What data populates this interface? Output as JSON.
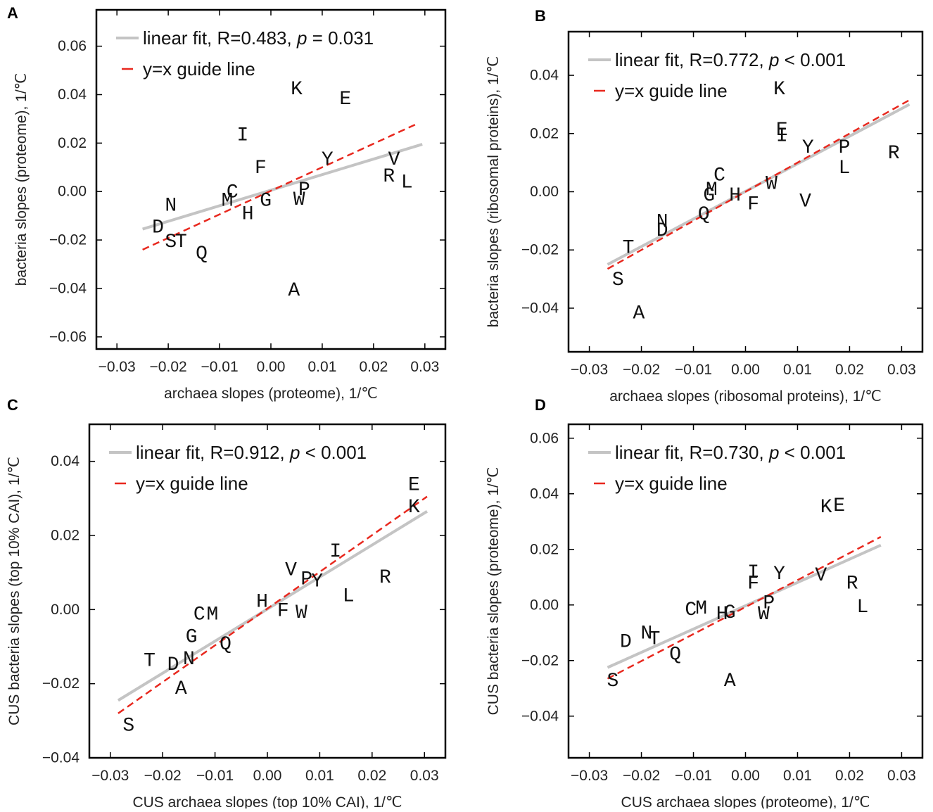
{
  "chart_data": [
    {
      "panel": "A",
      "type": "scatter",
      "xlabel": "archaea slopes (proteome), 1/℃",
      "ylabel": "bacteria slopes (proteome), 1/℃",
      "xlim": [
        -0.034,
        0.034
      ],
      "ylim": [
        -0.065,
        0.075
      ],
      "xticks": [
        -0.03,
        -0.02,
        -0.01,
        0.0,
        0.01,
        0.02,
        0.03
      ],
      "xtick_labels": [
        "−0.03",
        "−0.02",
        "−0.01",
        "0.00",
        "0.01",
        "0.02",
        "0.03"
      ],
      "yticks": [
        -0.06,
        -0.04,
        -0.02,
        0.0,
        0.02,
        0.04,
        0.06
      ],
      "ytick_labels": [
        "−0.06",
        "−0.04",
        "−0.02",
        "0.00",
        "0.02",
        "0.04",
        "0.06"
      ],
      "legend": {
        "position": "top-left",
        "fit_label": "linear fit, R=0.483, ",
        "p_symbol": "p",
        "p_value": " = 0.031",
        "guide_label": "y=x guide line"
      },
      "fit_line": {
        "x": [
          -0.025,
          0.0295
        ],
        "y": [
          -0.0155,
          0.0195
        ]
      },
      "guide_line": {
        "x": [
          -0.025,
          0.0285
        ],
        "y": [
          -0.024,
          0.028
        ]
      },
      "points": [
        {
          "label": "K",
          "x": 0.005,
          "y": 0.042
        },
        {
          "label": "E",
          "x": 0.0145,
          "y": 0.038
        },
        {
          "label": "I",
          "x": -0.0055,
          "y": 0.023
        },
        {
          "label": "Y",
          "x": 0.011,
          "y": 0.013
        },
        {
          "label": "V",
          "x": 0.024,
          "y": 0.013
        },
        {
          "label": "F",
          "x": -0.002,
          "y": 0.0095
        },
        {
          "label": "R",
          "x": 0.023,
          "y": 0.006
        },
        {
          "label": "L",
          "x": 0.0265,
          "y": 0.0035
        },
        {
          "label": "P",
          "x": 0.0065,
          "y": 0.0005
        },
        {
          "label": "C",
          "x": -0.0075,
          "y": -0.0005
        },
        {
          "label": "M",
          "x": -0.0085,
          "y": -0.004
        },
        {
          "label": "G",
          "x": -0.001,
          "y": -0.004
        },
        {
          "label": "W",
          "x": 0.0055,
          "y": -0.0035
        },
        {
          "label": "N",
          "x": -0.0195,
          "y": -0.006
        },
        {
          "label": "H",
          "x": -0.0045,
          "y": -0.0095
        },
        {
          "label": "D",
          "x": -0.022,
          "y": -0.015
        },
        {
          "label": "S",
          "x": -0.0195,
          "y": -0.021
        },
        {
          "label": "T",
          "x": -0.0175,
          "y": -0.021
        },
        {
          "label": "Q",
          "x": -0.0135,
          "y": -0.026
        },
        {
          "label": "A",
          "x": 0.0045,
          "y": -0.041
        }
      ]
    },
    {
      "panel": "B",
      "type": "scatter",
      "xlabel": "archaea slopes (ribosomal proteins), 1/℃",
      "ylabel": "bacteria slopes (ribosomal proteins), 1/℃",
      "xlim": [
        -0.034,
        0.034
      ],
      "ylim": [
        -0.055,
        0.055
      ],
      "xticks": [
        -0.03,
        -0.02,
        -0.01,
        0.0,
        0.01,
        0.02,
        0.03
      ],
      "xtick_labels": [
        "−0.03",
        "−0.02",
        "−0.01",
        "0.00",
        "0.01",
        "0.02",
        "0.03"
      ],
      "yticks": [
        -0.04,
        -0.02,
        0.0,
        0.02,
        0.04
      ],
      "ytick_labels": [
        "−0.04",
        "−0.02",
        "0.00",
        "0.02",
        "0.04"
      ],
      "legend": {
        "position": "top-left",
        "fit_label": "linear fit, R=0.772, ",
        "p_symbol": "p",
        "p_value": " < 0.001",
        "guide_label": "y=x guide line"
      },
      "fit_line": {
        "x": [
          -0.0265,
          0.0315
        ],
        "y": [
          -0.025,
          0.03
        ]
      },
      "guide_line": {
        "x": [
          -0.0265,
          0.0315
        ],
        "y": [
          -0.0265,
          0.0315
        ]
      },
      "points": [
        {
          "label": "K",
          "x": 0.0065,
          "y": 0.035
        },
        {
          "label": "E",
          "x": 0.007,
          "y": 0.021
        },
        {
          "label": "I",
          "x": 0.007,
          "y": 0.019
        },
        {
          "label": "Y",
          "x": 0.012,
          "y": 0.015
        },
        {
          "label": "P",
          "x": 0.019,
          "y": 0.015
        },
        {
          "label": "R",
          "x": 0.0285,
          "y": 0.013
        },
        {
          "label": "L",
          "x": 0.019,
          "y": 0.008
        },
        {
          "label": "C",
          "x": -0.005,
          "y": 0.0055
        },
        {
          "label": "M",
          "x": -0.0065,
          "y": 0.0005
        },
        {
          "label": "W",
          "x": 0.005,
          "y": 0.0025
        },
        {
          "label": "G",
          "x": -0.007,
          "y": -0.0015
        },
        {
          "label": "H",
          "x": -0.002,
          "y": -0.0015
        },
        {
          "label": "V",
          "x": 0.0115,
          "y": -0.0035
        },
        {
          "label": "F",
          "x": 0.0015,
          "y": -0.0045
        },
        {
          "label": "Q",
          "x": -0.008,
          "y": -0.008
        },
        {
          "label": "N",
          "x": -0.016,
          "y": -0.0105
        },
        {
          "label": "D",
          "x": -0.016,
          "y": -0.0135
        },
        {
          "label": "T",
          "x": -0.0225,
          "y": -0.0195
        },
        {
          "label": "S",
          "x": -0.0245,
          "y": -0.0305
        },
        {
          "label": "A",
          "x": -0.0205,
          "y": -0.042
        }
      ]
    },
    {
      "panel": "C",
      "type": "scatter",
      "xlabel": "CUS archaea slopes (top 10% CAI), 1/℃",
      "ylabel": "CUS bacteria slopes (top 10% CAI), 1/℃",
      "xlim": [
        -0.034,
        0.034
      ],
      "ylim": [
        -0.04,
        0.05
      ],
      "xticks": [
        -0.03,
        -0.02,
        -0.01,
        0.0,
        0.01,
        0.02,
        0.03
      ],
      "xtick_labels": [
        "−0.03",
        "−0.02",
        "−0.01",
        "0.00",
        "0.01",
        "0.02",
        "0.03"
      ],
      "yticks": [
        -0.04,
        -0.02,
        0.0,
        0.02,
        0.04
      ],
      "ytick_labels": [
        "−0.04",
        "−0.02",
        "0.00",
        "0.02",
        "0.04"
      ],
      "legend": {
        "position": "top-left",
        "fit_label": "linear fit, R=0.912, ",
        "p_symbol": "p",
        "p_value": " < 0.001",
        "guide_label": "y=x guide line"
      },
      "fit_line": {
        "x": [
          -0.0285,
          0.0305
        ],
        "y": [
          -0.0245,
          0.0265
        ]
      },
      "guide_line": {
        "x": [
          -0.0285,
          0.0305
        ],
        "y": [
          -0.028,
          0.0305
        ]
      },
      "points": [
        {
          "label": "E",
          "x": 0.028,
          "y": 0.0335
        },
        {
          "label": "K",
          "x": 0.028,
          "y": 0.0275
        },
        {
          "label": "I",
          "x": 0.013,
          "y": 0.0155
        },
        {
          "label": "V",
          "x": 0.0045,
          "y": 0.0105
        },
        {
          "label": "P",
          "x": 0.0075,
          "y": 0.008
        },
        {
          "label": "Y",
          "x": 0.0095,
          "y": 0.0075
        },
        {
          "label": "R",
          "x": 0.0225,
          "y": 0.0085
        },
        {
          "label": "L",
          "x": 0.0155,
          "y": 0.0035
        },
        {
          "label": "H",
          "x": -0.001,
          "y": 0.002
        },
        {
          "label": "F",
          "x": 0.003,
          "y": -0.0005
        },
        {
          "label": "W",
          "x": 0.0065,
          "y": -0.001
        },
        {
          "label": "C",
          "x": -0.013,
          "y": -0.0015
        },
        {
          "label": "M",
          "x": -0.0105,
          "y": -0.0015
        },
        {
          "label": "G",
          "x": -0.0145,
          "y": -0.0075
        },
        {
          "label": "Q",
          "x": -0.008,
          "y": -0.0095
        },
        {
          "label": "N",
          "x": -0.015,
          "y": -0.0135
        },
        {
          "label": "T",
          "x": -0.0225,
          "y": -0.014
        },
        {
          "label": "D",
          "x": -0.018,
          "y": -0.015
        },
        {
          "label": "A",
          "x": -0.0165,
          "y": -0.0215
        },
        {
          "label": "S",
          "x": -0.0265,
          "y": -0.0315
        }
      ]
    },
    {
      "panel": "D",
      "type": "scatter",
      "xlabel": "CUS archaea slopes (proteome), 1/℃",
      "ylabel": "CUS bacteria slopes (proteome), 1/℃",
      "xlim": [
        -0.034,
        0.034
      ],
      "ylim": [
        -0.055,
        0.065
      ],
      "xticks": [
        -0.03,
        -0.02,
        -0.01,
        0.0,
        0.01,
        0.02,
        0.03
      ],
      "xtick_labels": [
        "−0.03",
        "−0.02",
        "−0.01",
        "0.00",
        "0.01",
        "0.02",
        "0.03"
      ],
      "yticks": [
        -0.04,
        -0.02,
        0.0,
        0.02,
        0.04,
        0.06
      ],
      "ytick_labels": [
        "−0.04",
        "−0.02",
        "0.00",
        "0.02",
        "0.04",
        "0.06"
      ],
      "legend": {
        "position": "top-left",
        "fit_label": "linear fit, R=0.730, ",
        "p_symbol": "p",
        "p_value": " < 0.001",
        "guide_label": "y=x guide line"
      },
      "fit_line": {
        "x": [
          -0.0265,
          0.026
        ],
        "y": [
          -0.0225,
          0.0215
        ]
      },
      "guide_line": {
        "x": [
          -0.0265,
          0.026
        ],
        "y": [
          -0.0265,
          0.0245
        ]
      },
      "points": [
        {
          "label": "K",
          "x": 0.0155,
          "y": 0.035
        },
        {
          "label": "E",
          "x": 0.018,
          "y": 0.0355
        },
        {
          "label": "I",
          "x": 0.0015,
          "y": 0.0115
        },
        {
          "label": "Y",
          "x": 0.0065,
          "y": 0.011
        },
        {
          "label": "V",
          "x": 0.0145,
          "y": 0.0105
        },
        {
          "label": "F",
          "x": 0.0015,
          "y": 0.0075
        },
        {
          "label": "R",
          "x": 0.0205,
          "y": 0.0075
        },
        {
          "label": "P",
          "x": 0.0045,
          "y": 0.0005
        },
        {
          "label": "L",
          "x": 0.0225,
          "y": -0.001
        },
        {
          "label": "C",
          "x": -0.0105,
          "y": -0.002
        },
        {
          "label": "M",
          "x": -0.0085,
          "y": -0.0015
        },
        {
          "label": "H",
          "x": -0.0045,
          "y": -0.0035
        },
        {
          "label": "G",
          "x": -0.003,
          "y": -0.003
        },
        {
          "label": "W",
          "x": 0.0035,
          "y": -0.0035
        },
        {
          "label": "N",
          "x": -0.019,
          "y": -0.0105
        },
        {
          "label": "T",
          "x": -0.0175,
          "y": -0.0125
        },
        {
          "label": "D",
          "x": -0.023,
          "y": -0.0135
        },
        {
          "label": "Q",
          "x": -0.0135,
          "y": -0.018
        },
        {
          "label": "S",
          "x": -0.0255,
          "y": -0.0275
        },
        {
          "label": "A",
          "x": -0.003,
          "y": -0.0275
        }
      ]
    }
  ]
}
